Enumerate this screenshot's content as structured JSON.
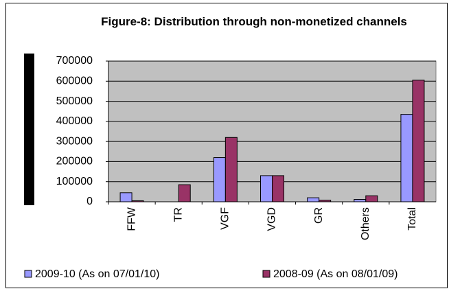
{
  "chart_data": {
    "type": "bar",
    "title": "Figure-8: Distribution through non-monetized channels",
    "categories": [
      "FFW",
      "TR",
      "VGF",
      "VGD",
      "GR",
      "Others",
      "Total"
    ],
    "series": [
      {
        "name": "2009-10 (As on 07/01/10)",
        "color": "#9999ff",
        "values": [
          45000,
          0,
          220000,
          130000,
          20000,
          12000,
          435000
        ]
      },
      {
        "name": "2008-09 (As on 08/01/09)",
        "color": "#993366",
        "values": [
          5000,
          85000,
          320000,
          130000,
          8000,
          30000,
          605000
        ]
      }
    ],
    "ylim": [
      0,
      700000
    ],
    "yticks": [
      0,
      100000,
      200000,
      300000,
      400000,
      500000,
      600000,
      700000
    ],
    "grid": true,
    "legend": "bottom"
  }
}
